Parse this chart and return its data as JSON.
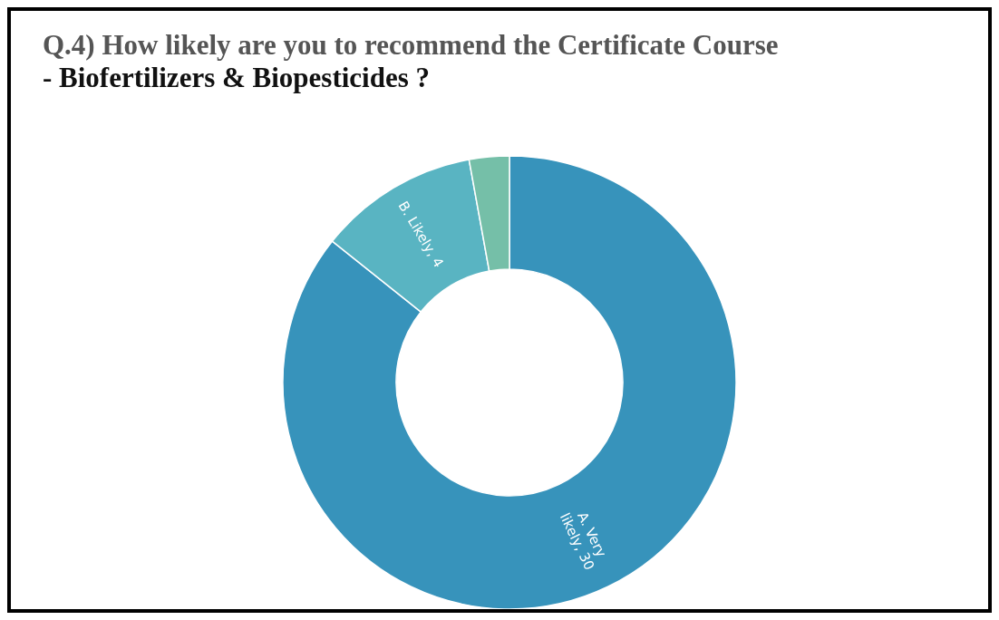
{
  "chart_data": {
    "type": "donut",
    "title": "Q.4) How likely are you to recommend the Certificate Course\n- Biofertilizers & Biopesticides ?",
    "categories": [
      "A. Very likely",
      "B. Likely",
      null
    ],
    "values": [
      30,
      4,
      1
    ],
    "value_labels": [
      "30",
      "4",
      null
    ],
    "colors": [
      "#3793bb",
      "#59b4c2",
      "#75bfa8"
    ],
    "legend": false
  }
}
